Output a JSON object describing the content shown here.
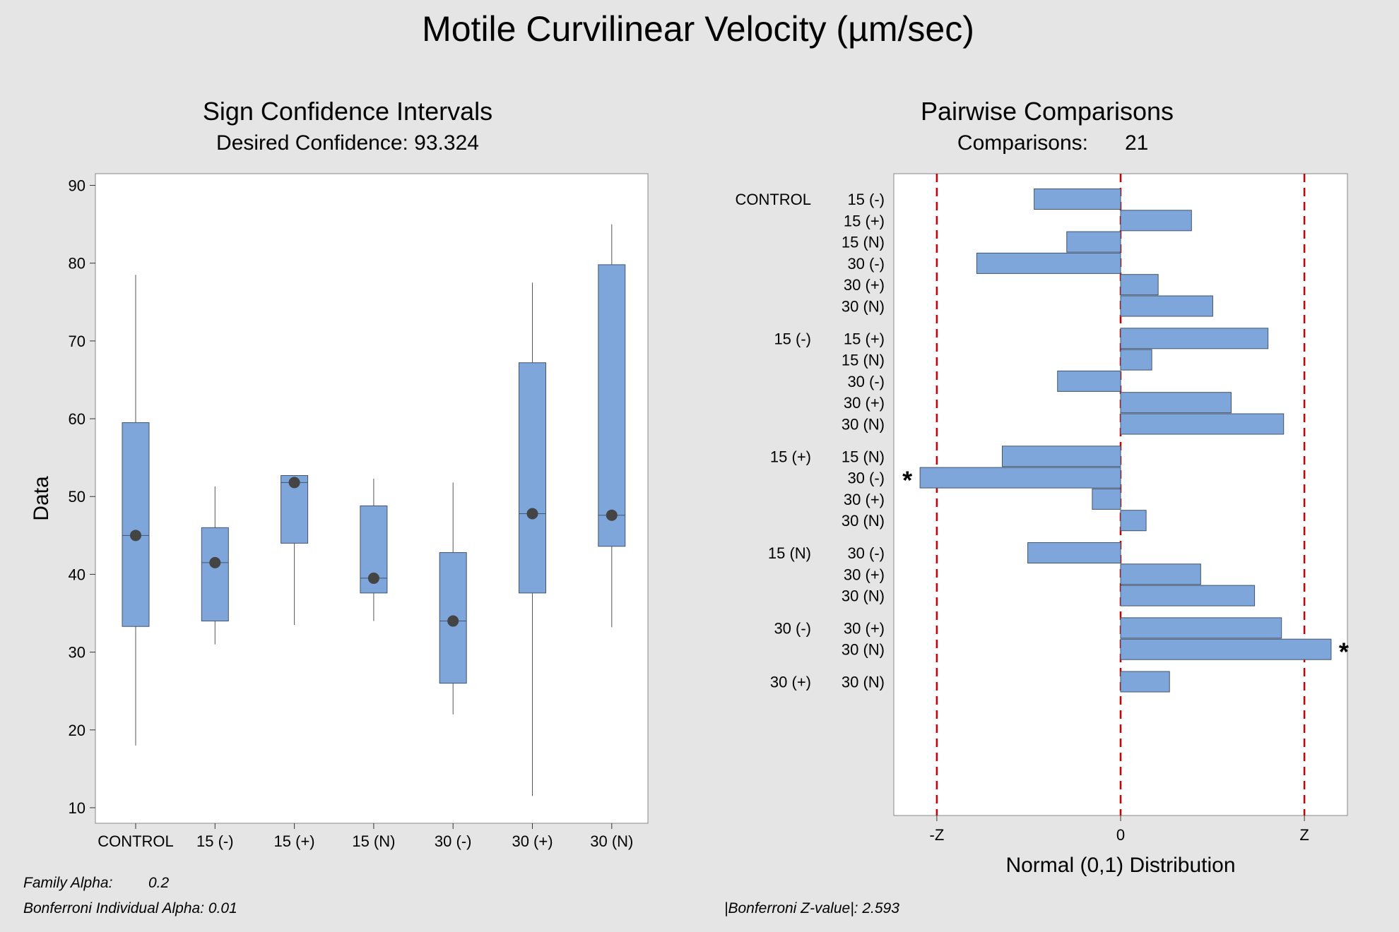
{
  "figure": {
    "title": "Motile Curvilinear Velocity (µm/sec)",
    "left_title": "Sign Confidence Intervals",
    "left_subtitle": "Desired Confidence: 93.324",
    "right_title": "Pairwise Comparisons",
    "right_subtitle_label": "Comparisons:",
    "right_subtitle_value": "21",
    "family_alpha_label": "Family Alpha:",
    "family_alpha_value": "0.2",
    "bonferroni_alpha": "Bonferroni Individual Alpha: 0.01",
    "bonferroni_z": "|Bonferroni Z-value|: 2.593"
  },
  "colors": {
    "box_fill": "#7ea6db",
    "box_stroke": "#44546a",
    "median_dot": "#444444",
    "ref_line": "#cc0000",
    "background": "#e5e5e5",
    "plot_bg": "#ffffff"
  },
  "chart_data": [
    {
      "type": "box",
      "categories": [
        "CONTROL",
        "15 (-)",
        "15 (+)",
        "15 (N)",
        "30 (-)",
        "30 (+)",
        "30 (N)"
      ],
      "ylabel": "Data",
      "xlabel": "",
      "ylim": [
        8,
        91.5
      ],
      "yticks": [
        10,
        20,
        30,
        40,
        50,
        60,
        70,
        80,
        90
      ],
      "series": [
        {
          "min": 18,
          "q1": 33.3,
          "median": 45,
          "q3": 59.5,
          "max": 78.5
        },
        {
          "min": 31,
          "q1": 34,
          "median": 41.5,
          "q3": 46,
          "max": 51.3
        },
        {
          "min": 33.5,
          "q1": 44,
          "median": 51.8,
          "q3": 52.7,
          "max": 52.7
        },
        {
          "min": 34,
          "q1": 37.6,
          "median": 39.5,
          "q3": 48.8,
          "max": 52.3
        },
        {
          "min": 22,
          "q1": 26,
          "median": 34,
          "q3": 42.8,
          "max": 51.8
        },
        {
          "min": 11.5,
          "q1": 37.6,
          "median": 47.8,
          "q3": 67.2,
          "max": 77.5
        },
        {
          "min": 33.2,
          "q1": 43.6,
          "median": 47.6,
          "q3": 79.8,
          "max": 85
        }
      ],
      "grid": false,
      "legend": "none"
    },
    {
      "type": "bar",
      "orientation": "horizontal",
      "xlabel": "Normal (0,1) Distribution",
      "xticks": [
        "-Z",
        "0",
        "Z"
      ],
      "xlim": [
        -3.2,
        3.2
      ],
      "z_value": 2.593,
      "significance_marker": "*",
      "groups": [
        {
          "label": "CONTROL",
          "comparisons": [
            {
              "label": "15 (-)",
              "value": -1.22
            },
            {
              "label": "15 (+)",
              "value": 1.0
            },
            {
              "label": "15 (N)",
              "value": -0.76
            },
            {
              "label": "30 (-)",
              "value": -2.03
            },
            {
              "label": "30 (+)",
              "value": 0.53
            },
            {
              "label": "30 (N)",
              "value": 1.3
            }
          ]
        },
        {
          "label": "15 (-)",
          "comparisons": [
            {
              "label": "15 (+)",
              "value": 2.08
            },
            {
              "label": "15 (N)",
              "value": 0.44
            },
            {
              "label": "30 (-)",
              "value": -0.89
            },
            {
              "label": "30 (+)",
              "value": 1.56
            },
            {
              "label": "30 (N)",
              "value": 2.3
            }
          ]
        },
        {
          "label": "15 (+)",
          "comparisons": [
            {
              "label": "15 (N)",
              "value": -1.67
            },
            {
              "label": "30 (-)",
              "value": -2.83,
              "significant": true
            },
            {
              "label": "30 (+)",
              "value": -0.4
            },
            {
              "label": "30 (N)",
              "value": 0.36
            }
          ]
        },
        {
          "label": "15 (N)",
          "comparisons": [
            {
              "label": "30 (-)",
              "value": -1.31
            },
            {
              "label": "30 (+)",
              "value": 1.13
            },
            {
              "label": "30 (N)",
              "value": 1.89
            }
          ]
        },
        {
          "label": "30 (-)",
          "comparisons": [
            {
              "label": "30 (+)",
              "value": 2.27
            },
            {
              "label": "30 (N)",
              "value": 2.97,
              "significant": true
            }
          ]
        },
        {
          "label": "30 (+)",
          "comparisons": [
            {
              "label": "30 (N)",
              "value": 0.69
            }
          ]
        }
      ],
      "grid": false,
      "legend": "none"
    }
  ]
}
